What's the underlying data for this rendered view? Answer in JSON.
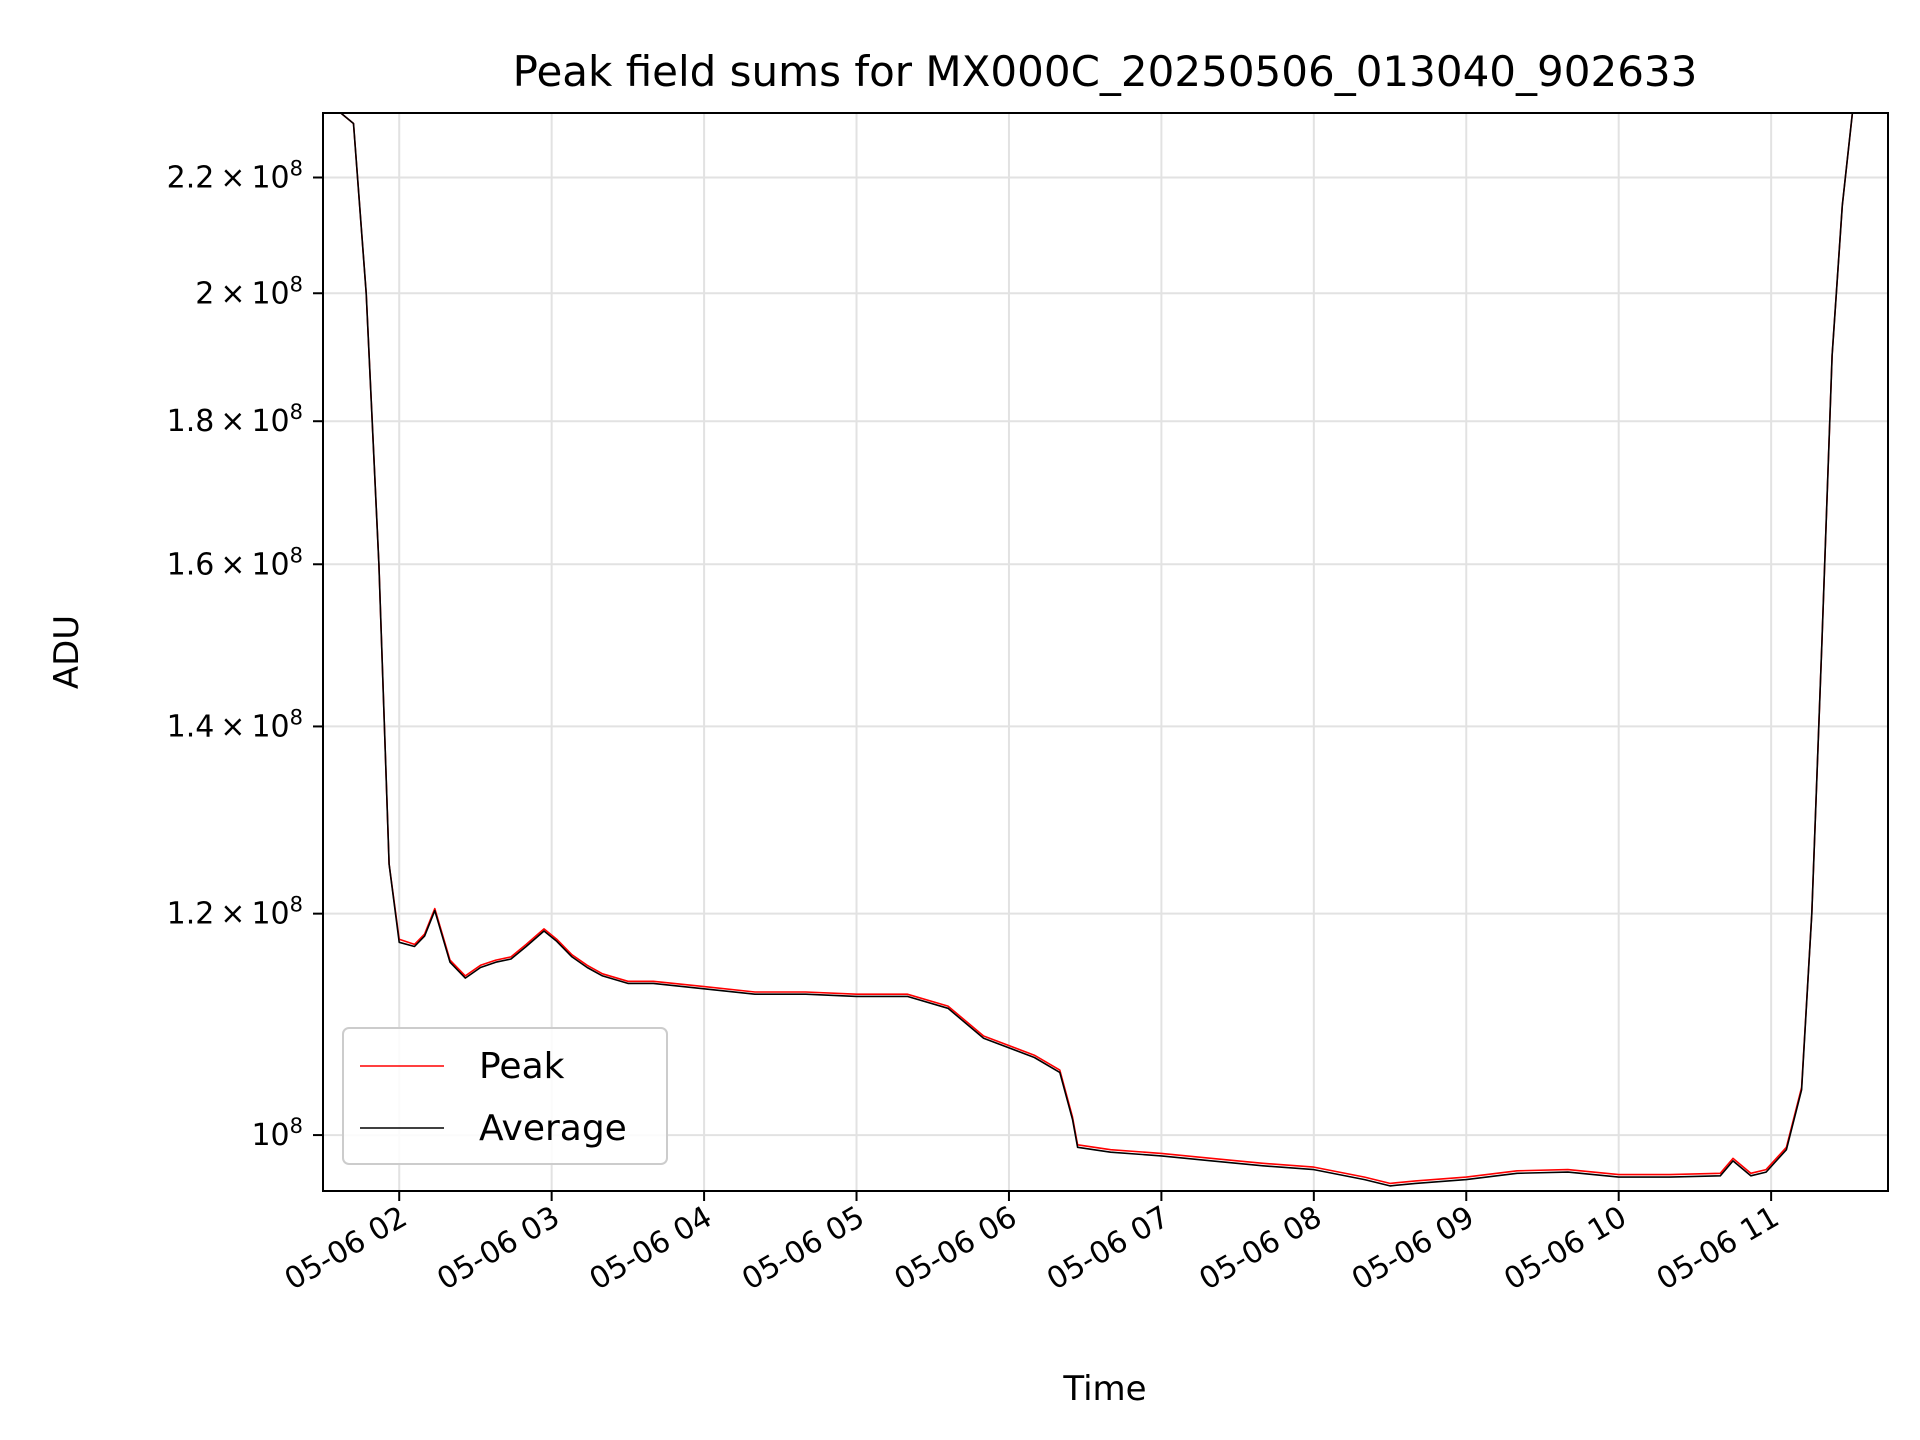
{
  "chart_data": {
    "type": "line",
    "title": "Peak field sums for MX000C_20250506_013040_902633",
    "xlabel": "Time",
    "ylabel": "ADU",
    "y_scale": "log",
    "xlim": [
      "2025-05-06 01:30",
      "2025-05-06 11:46"
    ],
    "ylim": [
      95500000,
      232000000
    ],
    "grid": true,
    "legend_position": "lower-left",
    "x_ticks": [
      {
        "value": "2025-05-06 02:00",
        "label": "05-06 02"
      },
      {
        "value": "2025-05-06 03:00",
        "label": "05-06 03"
      },
      {
        "value": "2025-05-06 04:00",
        "label": "05-06 04"
      },
      {
        "value": "2025-05-06 05:00",
        "label": "05-06 05"
      },
      {
        "value": "2025-05-06 06:00",
        "label": "05-06 06"
      },
      {
        "value": "2025-05-06 07:00",
        "label": "05-06 07"
      },
      {
        "value": "2025-05-06 08:00",
        "label": "05-06 08"
      },
      {
        "value": "2025-05-06 09:00",
        "label": "05-06 09"
      },
      {
        "value": "2025-05-06 10:00",
        "label": "05-06 10"
      },
      {
        "value": "2025-05-06 11:00",
        "label": "05-06 11"
      }
    ],
    "y_ticks": [
      {
        "value": 100000000,
        "mantissa": "",
        "exp": "8"
      },
      {
        "value": 120000000,
        "mantissa": "1.2",
        "exp": "8"
      },
      {
        "value": 140000000,
        "mantissa": "1.4",
        "exp": "8"
      },
      {
        "value": 160000000,
        "mantissa": "1.6",
        "exp": "8"
      },
      {
        "value": 180000000,
        "mantissa": "1.8",
        "exp": "8"
      },
      {
        "value": 200000000,
        "mantissa": "2",
        "exp": "8"
      },
      {
        "value": 220000000,
        "mantissa": "2.2",
        "exp": "8"
      }
    ],
    "series": [
      {
        "name": "Peak",
        "color": "#ff0000",
        "x": [
          "2025-05-06 01:30",
          "2025-05-06 01:37",
          "2025-05-06 01:42",
          "2025-05-06 01:47",
          "2025-05-06 01:52",
          "2025-05-06 01:56",
          "2025-05-06 02:00",
          "2025-05-06 02:06",
          "2025-05-06 02:10",
          "2025-05-06 02:14",
          "2025-05-06 02:20",
          "2025-05-06 02:26",
          "2025-05-06 02:32",
          "2025-05-06 02:38",
          "2025-05-06 02:44",
          "2025-05-06 02:50",
          "2025-05-06 02:57",
          "2025-05-06 03:02",
          "2025-05-06 03:08",
          "2025-05-06 03:14",
          "2025-05-06 03:20",
          "2025-05-06 03:30",
          "2025-05-06 03:40",
          "2025-05-06 04:00",
          "2025-05-06 04:20",
          "2025-05-06 04:40",
          "2025-05-06 05:00",
          "2025-05-06 05:20",
          "2025-05-06 05:36",
          "2025-05-06 05:50",
          "2025-05-06 06:10",
          "2025-05-06 06:20",
          "2025-05-06 06:25",
          "2025-05-06 06:27",
          "2025-05-06 06:40",
          "2025-05-06 07:00",
          "2025-05-06 07:20",
          "2025-05-06 07:40",
          "2025-05-06 08:00",
          "2025-05-06 08:20",
          "2025-05-06 08:30",
          "2025-05-06 08:40",
          "2025-05-06 09:00",
          "2025-05-06 09:20",
          "2025-05-06 09:40",
          "2025-05-06 10:00",
          "2025-05-06 10:20",
          "2025-05-06 10:40",
          "2025-05-06 10:45",
          "2025-05-06 10:52",
          "2025-05-06 10:58",
          "2025-05-06 11:06",
          "2025-05-06 11:12",
          "2025-05-06 11:16",
          "2025-05-06 11:20",
          "2025-05-06 11:24",
          "2025-05-06 11:28",
          "2025-05-06 11:32",
          "2025-05-06 11:36",
          "2025-05-06 11:46"
        ],
        "y": [
          232000000,
          232000000,
          230000000,
          200000000,
          160000000,
          125000000,
          117500000,
          117000000,
          118000000,
          120500000,
          115500000,
          114000000,
          115000000,
          115500000,
          115800000,
          117000000,
          118500000,
          117500000,
          116000000,
          115000000,
          114200000,
          113500000,
          113500000,
          113000000,
          112500000,
          112500000,
          112300000,
          112300000,
          111200000,
          108500000,
          106800000,
          105500000,
          101500000,
          99200000,
          98800000,
          98500000,
          98100000,
          97700000,
          97400000,
          96600000,
          96100000,
          96300000,
          96600000,
          97100000,
          97200000,
          96800000,
          96800000,
          96900000,
          98100000,
          96900000,
          97200000,
          99000000,
          104000000,
          120000000,
          150000000,
          190000000,
          215000000,
          232000000,
          232000000,
          232000000
        ]
      },
      {
        "name": "Average",
        "color": "#000000",
        "x": [
          "2025-05-06 01:30",
          "2025-05-06 01:37",
          "2025-05-06 01:42",
          "2025-05-06 01:47",
          "2025-05-06 01:52",
          "2025-05-06 01:56",
          "2025-05-06 02:00",
          "2025-05-06 02:06",
          "2025-05-06 02:10",
          "2025-05-06 02:14",
          "2025-05-06 02:20",
          "2025-05-06 02:26",
          "2025-05-06 02:32",
          "2025-05-06 02:38",
          "2025-05-06 02:44",
          "2025-05-06 02:50",
          "2025-05-06 02:57",
          "2025-05-06 03:02",
          "2025-05-06 03:08",
          "2025-05-06 03:14",
          "2025-05-06 03:20",
          "2025-05-06 03:30",
          "2025-05-06 03:40",
          "2025-05-06 04:00",
          "2025-05-06 04:20",
          "2025-05-06 04:40",
          "2025-05-06 05:00",
          "2025-05-06 05:20",
          "2025-05-06 05:36",
          "2025-05-06 05:50",
          "2025-05-06 06:10",
          "2025-05-06 06:20",
          "2025-05-06 06:25",
          "2025-05-06 06:27",
          "2025-05-06 06:40",
          "2025-05-06 07:00",
          "2025-05-06 07:20",
          "2025-05-06 07:40",
          "2025-05-06 08:00",
          "2025-05-06 08:20",
          "2025-05-06 08:30",
          "2025-05-06 08:40",
          "2025-05-06 09:00",
          "2025-05-06 09:20",
          "2025-05-06 09:40",
          "2025-05-06 10:00",
          "2025-05-06 10:20",
          "2025-05-06 10:40",
          "2025-05-06 10:45",
          "2025-05-06 10:52",
          "2025-05-06 10:58",
          "2025-05-06 11:06",
          "2025-05-06 11:12",
          "2025-05-06 11:16",
          "2025-05-06 11:20",
          "2025-05-06 11:24",
          "2025-05-06 11:28",
          "2025-05-06 11:32",
          "2025-05-06 11:36",
          "2025-05-06 11:46"
        ],
        "y": [
          232000000,
          232000000,
          230000000,
          200000000,
          160000000,
          125000000,
          117200000,
          116800000,
          117800000,
          120300000,
          115300000,
          113800000,
          114800000,
          115300000,
          115600000,
          116800000,
          118300000,
          117300000,
          115800000,
          114800000,
          114000000,
          113300000,
          113300000,
          112800000,
          112300000,
          112300000,
          112100000,
          112100000,
          111000000,
          108300000,
          106600000,
          105300000,
          101300000,
          99000000,
          98600000,
          98300000,
          97900000,
          97500000,
          97200000,
          96400000,
          95900000,
          96100000,
          96400000,
          96900000,
          97000000,
          96600000,
          96600000,
          96700000,
          97900000,
          96700000,
          97000000,
          98800000,
          103800000,
          120000000,
          150000000,
          190000000,
          215000000,
          232000000,
          232000000,
          232000000
        ]
      }
    ]
  }
}
